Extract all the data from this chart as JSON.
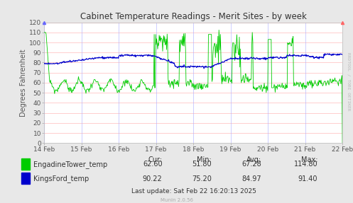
{
  "title": "Cabinet Temperature Readings - Merit Sites - by week",
  "ylabel": "Degrees Fahrenheit",
  "xlabel_ticks": [
    "14 Feb",
    "15 Feb",
    "16 Feb",
    "17 Feb",
    "18 Feb",
    "19 Feb",
    "20 Feb",
    "21 Feb",
    "22 Feb"
  ],
  "ylim": [
    0,
    120
  ],
  "yticks": [
    0,
    10,
    20,
    30,
    40,
    50,
    60,
    70,
    80,
    90,
    100,
    110,
    120
  ],
  "outer_bg": "#e8e8e8",
  "plot_bg_color": "#ffffff",
  "grid_color_h": "#ffcccc",
  "grid_color_v": "#ccccff",
  "green_color": "#00cc00",
  "blue_color": "#0000cc",
  "title_color": "#333333",
  "tick_color": "#999999",
  "legend": [
    {
      "label": "EngadineTower_temp",
      "color": "#00cc00"
    },
    {
      "label": "KingsFord_temp",
      "color": "#0000cc"
    }
  ],
  "stats": {
    "cur_green": "62.60",
    "cur_blue": "90.22",
    "min_green": "51.80",
    "min_blue": "75.20",
    "avg_green": "67.28",
    "avg_blue": "84.97",
    "max_green": "114.80",
    "max_blue": "91.40"
  },
  "footer": "Munin 2.0.56",
  "last_update": "Last update: Sat Feb 22 16:20:13 2025",
  "watermark": "RRDTOOL / TOBI OETIKER",
  "num_points": 600
}
